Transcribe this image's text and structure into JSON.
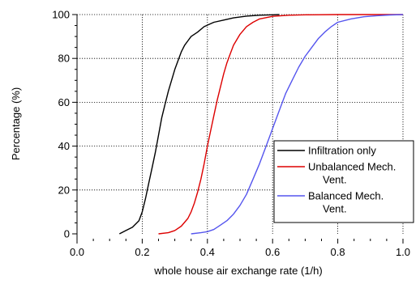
{
  "chart_data": {
    "type": "line",
    "title": "",
    "xlabel": "whole house air exchange rate (1/h)",
    "ylabel": "Percentage (%)",
    "xlim": [
      0.0,
      1.0
    ],
    "ylim": [
      0,
      100
    ],
    "x_ticks": [
      0.0,
      0.2,
      0.4,
      0.6,
      0.8,
      1.0
    ],
    "x_tick_labels": [
      "0.0",
      "0.2",
      "0.4",
      "0.6",
      "0.8",
      "1.0"
    ],
    "y_ticks": [
      0,
      20,
      40,
      60,
      80,
      100
    ],
    "y_tick_labels": [
      "0",
      "20",
      "40",
      "60",
      "80",
      "100"
    ],
    "grid": true,
    "legend_position": "lower-right",
    "series": [
      {
        "name": "Infiltration only",
        "color": "#000000",
        "x": [
          0.13,
          0.15,
          0.17,
          0.19,
          0.2,
          0.21,
          0.22,
          0.23,
          0.24,
          0.25,
          0.26,
          0.27,
          0.28,
          0.29,
          0.3,
          0.31,
          0.32,
          0.33,
          0.34,
          0.35,
          0.37,
          0.39,
          0.42,
          0.45,
          0.48,
          0.52,
          0.56,
          0.6,
          0.62
        ],
        "y": [
          0,
          1.5,
          3,
          6,
          10,
          16,
          23,
          30,
          37,
          45,
          53,
          59,
          65,
          70,
          75,
          79,
          83,
          86,
          88,
          90,
          92,
          94.5,
          96.5,
          97.5,
          98.5,
          99.3,
          99.7,
          99.9,
          100
        ]
      },
      {
        "name": "Unbalanced Mech.\nVent.",
        "color": "#dd0000",
        "x": [
          0.25,
          0.28,
          0.3,
          0.32,
          0.34,
          0.35,
          0.36,
          0.37,
          0.38,
          0.39,
          0.4,
          0.41,
          0.42,
          0.43,
          0.44,
          0.45,
          0.46,
          0.47,
          0.48,
          0.5,
          0.52,
          0.54,
          0.56,
          0.6,
          0.65,
          0.7,
          0.8,
          1.0
        ],
        "y": [
          0,
          0.5,
          1.5,
          3.5,
          7,
          10,
          14,
          19,
          25,
          32,
          40,
          47,
          54,
          61,
          67,
          73,
          78,
          82,
          86,
          91,
          94.5,
          96.5,
          98,
          99.2,
          99.7,
          99.9,
          100,
          100
        ]
      },
      {
        "name": "Balanced Mech.\nVent.",
        "color": "#5555ee",
        "x": [
          0.35,
          0.38,
          0.4,
          0.42,
          0.44,
          0.46,
          0.48,
          0.5,
          0.52,
          0.54,
          0.56,
          0.58,
          0.6,
          0.62,
          0.64,
          0.66,
          0.68,
          0.7,
          0.72,
          0.74,
          0.76,
          0.78,
          0.8,
          0.84,
          0.88,
          0.92,
          0.96,
          1.0
        ],
        "y": [
          0,
          0.5,
          1,
          2,
          4,
          6,
          9,
          13,
          18,
          25,
          32,
          40,
          48,
          56,
          64,
          70,
          76,
          81,
          85,
          89,
          92,
          94.5,
          96.5,
          98,
          99,
          99.5,
          99.8,
          100
        ]
      }
    ]
  }
}
